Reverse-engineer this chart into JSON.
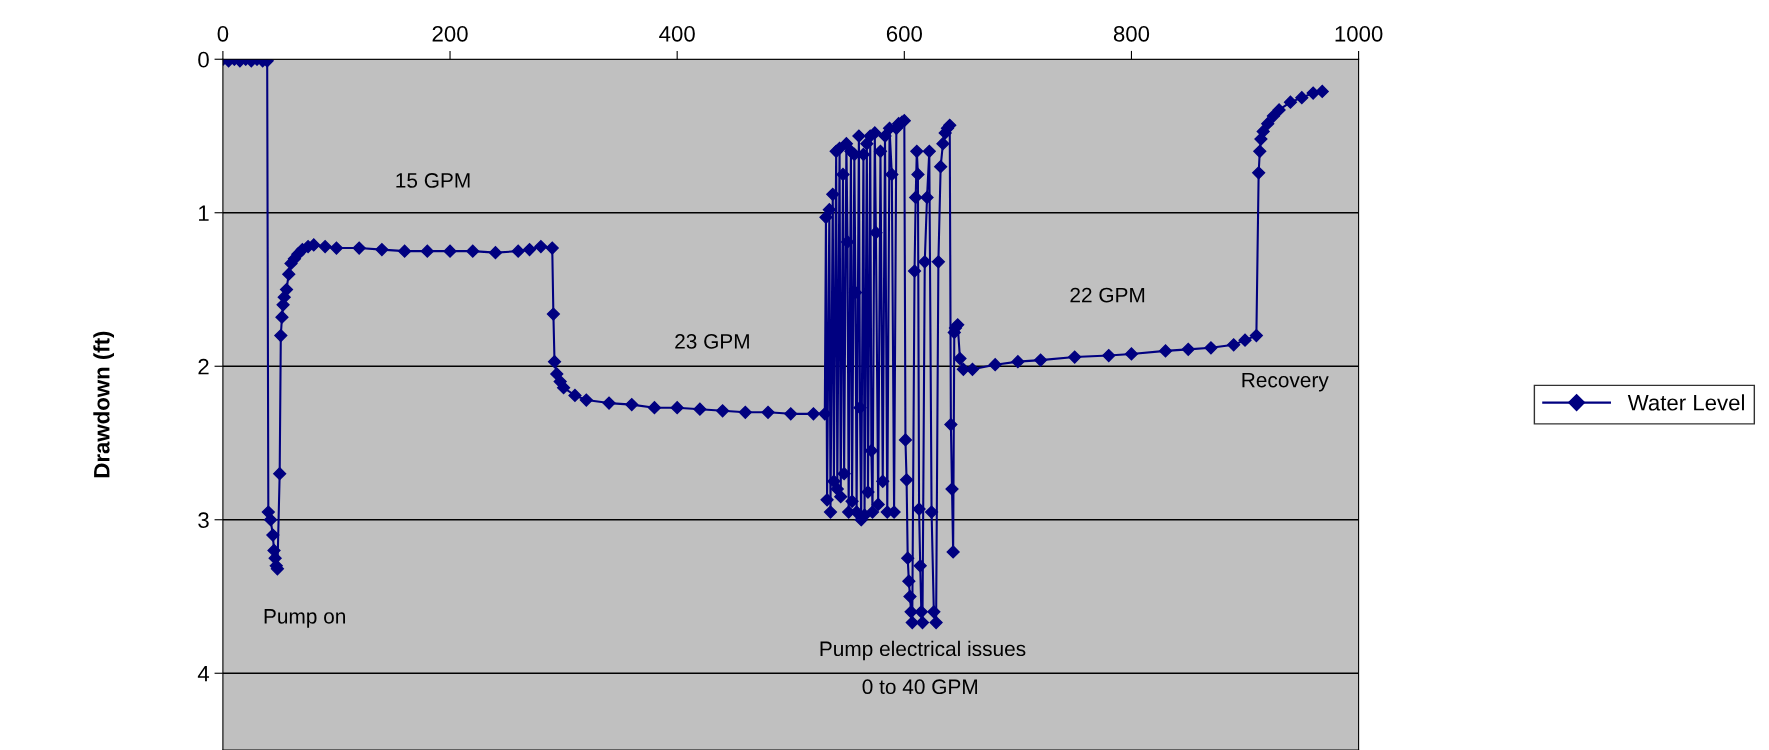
{
  "chart_data": {
    "type": "line",
    "ylabel": "Drawdown (ft)",
    "xlim": [
      0,
      1000
    ],
    "xticks": [
      0,
      200,
      400,
      600,
      800,
      1000
    ],
    "ylim": [
      4.5,
      0
    ],
    "yticks": [
      0,
      1,
      2,
      3,
      4
    ],
    "grid": "y",
    "legend": "right",
    "marker": "diamond",
    "line_style": "solid",
    "annotations": [
      "15 GPM",
      "23 GPM",
      "22 GPM",
      "Recovery",
      "Pump on",
      "Pump electrical issues",
      "0 to 40 GPM"
    ],
    "series": [
      {
        "name": "Water Level",
        "color": "#000080",
        "x": [
          0,
          5,
          10,
          15,
          20,
          25,
          30,
          35,
          39,
          40,
          42,
          44,
          45,
          46,
          47,
          48,
          50,
          51,
          52,
          53,
          54,
          56,
          58,
          60,
          63,
          66,
          70,
          75,
          80,
          90,
          100,
          120,
          140,
          160,
          180,
          200,
          220,
          240,
          260,
          270,
          280,
          290,
          291,
          292,
          294,
          297,
          300,
          310,
          320,
          340,
          360,
          380,
          400,
          420,
          440,
          460,
          480,
          500,
          520,
          530,
          531,
          532,
          534,
          535,
          537,
          538,
          540,
          541,
          543,
          544,
          546,
          547,
          549,
          550,
          551,
          553,
          554,
          556,
          557,
          558,
          560,
          561,
          562,
          564,
          565,
          567,
          568,
          570,
          571,
          572,
          574,
          575,
          577,
          579,
          581,
          583,
          585,
          587,
          589,
          591,
          593,
          595,
          598,
          600,
          601,
          602,
          603,
          604,
          605,
          606,
          607,
          609,
          610,
          611,
          612,
          613,
          614,
          615,
          616,
          618,
          620,
          622,
          624,
          626,
          628,
          630,
          632,
          634,
          636,
          638,
          640,
          641,
          642,
          643,
          644,
          645,
          647,
          649,
          652,
          660,
          680,
          700,
          720,
          750,
          780,
          800,
          830,
          850,
          870,
          890,
          900,
          910,
          912,
          913,
          914,
          916,
          920,
          925,
          930,
          940,
          950,
          960,
          968
        ],
        "values": [
          0,
          0.01,
          0,
          0.01,
          0,
          0.01,
          0,
          0.01,
          0.01,
          2.95,
          3.0,
          3.1,
          3.2,
          3.25,
          3.3,
          3.32,
          2.7,
          1.8,
          1.68,
          1.6,
          1.55,
          1.5,
          1.4,
          1.33,
          1.3,
          1.27,
          1.24,
          1.22,
          1.21,
          1.22,
          1.23,
          1.23,
          1.24,
          1.25,
          1.25,
          1.25,
          1.25,
          1.26,
          1.25,
          1.24,
          1.22,
          1.23,
          1.66,
          1.97,
          2.05,
          2.1,
          2.14,
          2.19,
          2.22,
          2.24,
          2.25,
          2.27,
          2.27,
          2.28,
          2.29,
          2.3,
          2.3,
          2.31,
          2.31,
          2.31,
          1.03,
          2.87,
          0.98,
          2.95,
          0.88,
          2.75,
          0.6,
          2.8,
          0.58,
          2.85,
          0.75,
          2.7,
          0.55,
          1.19,
          2.95,
          0.6,
          2.88,
          0.62,
          1.52,
          2.95,
          0.5,
          2.27,
          3.0,
          0.62,
          2.97,
          0.55,
          2.82,
          0.5,
          2.55,
          2.95,
          0.48,
          1.13,
          2.9,
          0.6,
          2.75,
          0.5,
          2.95,
          0.45,
          0.75,
          2.95,
          0.45,
          0.42,
          0.41,
          0.4,
          2.48,
          2.74,
          3.25,
          3.4,
          3.5,
          3.6,
          3.67,
          1.38,
          0.9,
          0.6,
          0.75,
          2.93,
          3.3,
          3.6,
          3.67,
          1.32,
          0.9,
          0.6,
          2.95,
          3.6,
          3.67,
          1.32,
          0.7,
          0.55,
          0.48,
          0.45,
          0.43,
          2.38,
          2.8,
          3.21,
          1.78,
          1.75,
          1.73,
          1.95,
          2.02,
          2.02,
          1.99,
          1.97,
          1.96,
          1.94,
          1.93,
          1.92,
          1.9,
          1.89,
          1.88,
          1.86,
          1.83,
          1.8,
          0.74,
          0.6,
          0.52,
          0.47,
          0.42,
          0.37,
          0.33,
          0.28,
          0.25,
          0.22,
          0.21
        ]
      }
    ]
  }
}
